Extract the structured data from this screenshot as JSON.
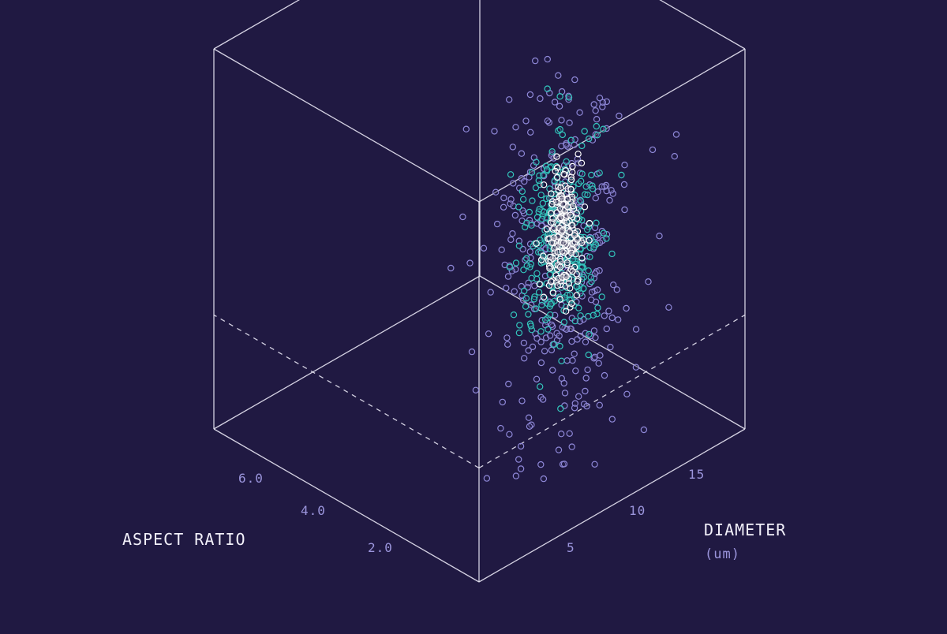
{
  "chart_data": {
    "type": "scatter",
    "projection": "isometric-3d",
    "grid": false,
    "axes": {
      "aspect_ratio": {
        "label": "ASPECT RATIO",
        "unit": "",
        "ticks": [
          "2.0",
          "4.0",
          "6.0"
        ],
        "range": [
          1.0,
          7.0
        ]
      },
      "diameter": {
        "label": "DIAMETER",
        "unit": "(um)",
        "ticks": [
          "5",
          "10",
          "15"
        ],
        "range": [
          2,
          19
        ]
      },
      "vertical": {
        "label": "",
        "unit": "",
        "ticks": [],
        "range": [
          0,
          1
        ]
      }
    },
    "series": [
      {
        "stroke": "#8f88d8",
        "point_count": 320,
        "center": {
          "aspect_ratio": 2.3,
          "diameter": 10.8,
          "vertical": 0.56
        },
        "spread": {
          "aspect_ratio": 0.55,
          "diameter": 1.9,
          "vertical": 0.27
        }
      },
      {
        "stroke": "#33c7bd",
        "point_count": 330,
        "center": {
          "aspect_ratio": 2.4,
          "diameter": 11.2,
          "vertical": 0.58
        },
        "spread": {
          "aspect_ratio": 0.28,
          "diameter": 1.0,
          "vertical": 0.13
        }
      },
      {
        "stroke": "#ffffff",
        "point_count": 230,
        "center": {
          "aspect_ratio": 2.45,
          "diameter": 11.5,
          "vertical": 0.6
        },
        "spread": {
          "aspect_ratio": 0.13,
          "diameter": 0.5,
          "vertical": 0.08
        }
      }
    ]
  },
  "colors": {
    "background": "#201942",
    "box_edges": "#e8e6f4",
    "axis_title": "#f2f0fa",
    "tick_label": "#9b95dc"
  }
}
